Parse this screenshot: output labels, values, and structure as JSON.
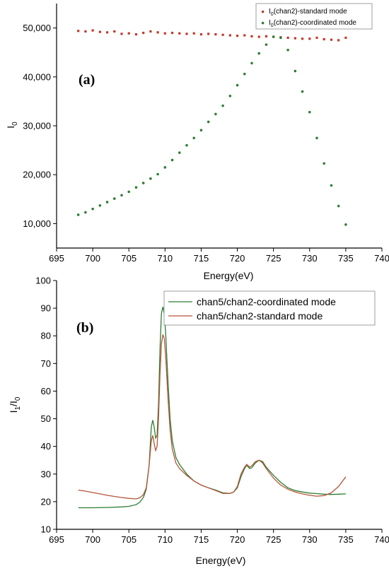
{
  "chart_data": [
    {
      "type": "scatter",
      "panel_label": "(a)",
      "xlabel": "Energy(eV)",
      "ylabel": "I",
      "ylabel_sub": "0",
      "xlim": [
        695,
        740
      ],
      "ylim": [
        5000,
        55000
      ],
      "xticks": [
        695,
        700,
        705,
        710,
        715,
        720,
        725,
        730,
        735,
        740
      ],
      "yticks": [
        10000,
        20000,
        30000,
        40000,
        50000
      ],
      "ytick_labels": [
        "10,000",
        "20,000",
        "30,000",
        "40,000",
        "50,000"
      ],
      "legend_position": "top-right",
      "series": [
        {
          "name": "I",
          "name_sub": "0",
          "name_rest": "(chan2)-standard mode",
          "color": "#c0392b",
          "marker": "square",
          "points": [
            [
              698,
              49400
            ],
            [
              699,
              49300
            ],
            [
              700,
              49500
            ],
            [
              701,
              49200
            ],
            [
              702,
              49100
            ],
            [
              703,
              49300
            ],
            [
              704,
              48800
            ],
            [
              705,
              48900
            ],
            [
              706,
              48700
            ],
            [
              707,
              49000
            ],
            [
              708,
              49300
            ],
            [
              709,
              49100
            ],
            [
              710,
              48900
            ],
            [
              711,
              49000
            ],
            [
              712,
              48900
            ],
            [
              713,
              48800
            ],
            [
              714,
              48900
            ],
            [
              715,
              48700
            ],
            [
              716,
              48800
            ],
            [
              717,
              48700
            ],
            [
              718,
              48600
            ],
            [
              719,
              48500
            ],
            [
              720,
              48400
            ],
            [
              721,
              48500
            ],
            [
              722,
              48300
            ],
            [
              723,
              48200
            ],
            [
              724,
              48300
            ],
            [
              725,
              48200
            ],
            [
              726,
              48100
            ],
            [
              727,
              48000
            ],
            [
              728,
              47900
            ],
            [
              729,
              47800
            ],
            [
              730,
              47800
            ],
            [
              731,
              48000
            ],
            [
              732,
              47700
            ],
            [
              733,
              47600
            ],
            [
              734,
              47500
            ],
            [
              735,
              48000
            ]
          ]
        },
        {
          "name": "I",
          "name_sub": "0",
          "name_rest": "(chan2)-coordinated mode",
          "color": "#2e7d32",
          "marker": "circle",
          "points": [
            [
              698,
              11800
            ],
            [
              699,
              12300
            ],
            [
              700,
              13000
            ],
            [
              701,
              13700
            ],
            [
              702,
              14400
            ],
            [
              703,
              15100
            ],
            [
              704,
              15800
            ],
            [
              705,
              16500
            ],
            [
              706,
              17400
            ],
            [
              707,
              18300
            ],
            [
              708,
              19200
            ],
            [
              709,
              20100
            ],
            [
              710,
              21500
            ],
            [
              711,
              23000
            ],
            [
              712,
              24500
            ],
            [
              713,
              26000
            ],
            [
              714,
              27500
            ],
            [
              715,
              29100
            ],
            [
              716,
              30800
            ],
            [
              717,
              32400
            ],
            [
              718,
              34100
            ],
            [
              719,
              36100
            ],
            [
              720,
              38300
            ],
            [
              721,
              40600
            ],
            [
              722,
              42800
            ],
            [
              723,
              44800
            ],
            [
              724,
              46600
            ],
            [
              725,
              48200
            ],
            [
              726,
              48000
            ],
            [
              727,
              45500
            ],
            [
              728,
              41200
            ],
            [
              729,
              37000
            ],
            [
              730,
              32800
            ],
            [
              731,
              27500
            ],
            [
              732,
              22300
            ],
            [
              733,
              17800
            ],
            [
              734,
              13600
            ],
            [
              735,
              9800
            ]
          ]
        }
      ]
    },
    {
      "type": "line",
      "panel_label": "(b)",
      "xlabel": "Energy(eV)",
      "ylabel": "I",
      "ylabel_sub1": "1",
      "ylabel_mid": "/I",
      "ylabel_sub2": "0",
      "xlim": [
        695,
        740
      ],
      "ylim": [
        10,
        100
      ],
      "xticks": [
        695,
        700,
        705,
        710,
        715,
        720,
        725,
        730,
        735,
        740
      ],
      "yticks": [
        10,
        20,
        30,
        40,
        50,
        60,
        70,
        80,
        90,
        100
      ],
      "legend_position": "top-right",
      "series": [
        {
          "name": "chan5/chan2-coordinated mode",
          "color": "#2e7d32",
          "points": [
            [
              698,
              17.8
            ],
            [
              700,
              17.8
            ],
            [
              702,
              17.9
            ],
            [
              704,
              18.1
            ],
            [
              705,
              18.3
            ],
            [
              706,
              18.9
            ],
            [
              706.5,
              19.8
            ],
            [
              707,
              21.5
            ],
            [
              707.4,
              24.5
            ],
            [
              707.8,
              33
            ],
            [
              708.1,
              47
            ],
            [
              708.3,
              49.5
            ],
            [
              708.5,
              47
            ],
            [
              708.7,
              43
            ],
            [
              708.9,
              44
            ],
            [
              709.1,
              55
            ],
            [
              709.3,
              75
            ],
            [
              709.5,
              88
            ],
            [
              709.7,
              90.5
            ],
            [
              709.9,
              88
            ],
            [
              710.1,
              80
            ],
            [
              710.4,
              64
            ],
            [
              710.7,
              50
            ],
            [
              711,
              42
            ],
            [
              711.5,
              36
            ],
            [
              712,
              33.5
            ],
            [
              713,
              30
            ],
            [
              714,
              27.5
            ],
            [
              715,
              26
            ],
            [
              716,
              25
            ],
            [
              717,
              24.2
            ],
            [
              718,
              23.2
            ],
            [
              719,
              23
            ],
            [
              719.5,
              23.5
            ],
            [
              720,
              25
            ],
            [
              720.5,
              29
            ],
            [
              721,
              32
            ],
            [
              721.3,
              33.2
            ],
            [
              721.7,
              32
            ],
            [
              722,
              32.3
            ],
            [
              722.5,
              34
            ],
            [
              723,
              35
            ],
            [
              723.5,
              34.5
            ],
            [
              724,
              32.5
            ],
            [
              725,
              29.5
            ],
            [
              726,
              27
            ],
            [
              727,
              25
            ],
            [
              728,
              24
            ],
            [
              729,
              23.5
            ],
            [
              730,
              23.1
            ],
            [
              731,
              22.9
            ],
            [
              732,
              22.7
            ],
            [
              733,
              22.6
            ],
            [
              734,
              22.7
            ],
            [
              735,
              22.8
            ]
          ]
        },
        {
          "name": "chan5/chan2-standard mode",
          "color": "#b5553a",
          "points": [
            [
              698,
              24.2
            ],
            [
              699,
              23.8
            ],
            [
              700,
              23.3
            ],
            [
              701,
              22.8
            ],
            [
              702,
              22.3
            ],
            [
              703,
              21.9
            ],
            [
              704,
              21.5
            ],
            [
              705,
              21.2
            ],
            [
              706,
              21
            ],
            [
              706.5,
              21.4
            ],
            [
              707,
              22.5
            ],
            [
              707.4,
              25
            ],
            [
              707.8,
              33
            ],
            [
              708.1,
              42
            ],
            [
              708.3,
              44
            ],
            [
              708.5,
              41
            ],
            [
              708.7,
              38.5
            ],
            [
              708.9,
              40
            ],
            [
              709.1,
              50
            ],
            [
              709.3,
              66
            ],
            [
              709.5,
              77
            ],
            [
              709.7,
              80.5
            ],
            [
              709.9,
              79
            ],
            [
              710.1,
              72
            ],
            [
              710.4,
              58
            ],
            [
              710.7,
              46
            ],
            [
              711,
              39
            ],
            [
              711.5,
              34
            ],
            [
              712,
              32
            ],
            [
              713,
              29.5
            ],
            [
              714,
              27.5
            ],
            [
              715,
              26
            ],
            [
              716,
              25
            ],
            [
              717,
              24
            ],
            [
              718,
              23
            ],
            [
              719,
              23
            ],
            [
              719.5,
              23.5
            ],
            [
              720,
              25.5
            ],
            [
              720.5,
              30
            ],
            [
              721,
              32.5
            ],
            [
              721.3,
              33.5
            ],
            [
              721.7,
              32.5
            ],
            [
              722,
              33
            ],
            [
              722.5,
              34.5
            ],
            [
              723,
              35
            ],
            [
              723.5,
              34
            ],
            [
              724,
              32
            ],
            [
              725,
              28.5
            ],
            [
              726,
              26
            ],
            [
              727,
              24.5
            ],
            [
              728,
              23.5
            ],
            [
              729,
              22.8
            ],
            [
              730,
              22.3
            ],
            [
              731,
              22
            ],
            [
              732,
              22.2
            ],
            [
              733,
              23.2
            ],
            [
              734,
              25.5
            ],
            [
              735,
              29
            ]
          ]
        }
      ]
    }
  ]
}
